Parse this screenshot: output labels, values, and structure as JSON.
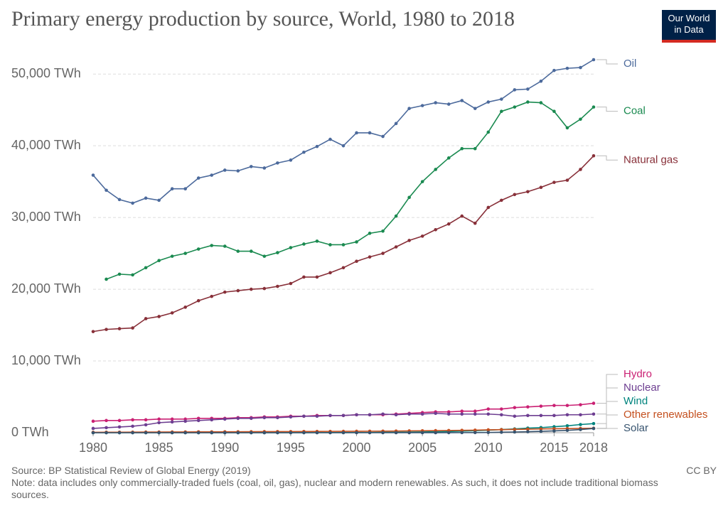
{
  "chart_data": {
    "type": "line",
    "title": "Primary energy production by source, World, 1980 to 2018",
    "logo": [
      "Our World",
      "in Data"
    ],
    "source": "Source: BP Statistical Review of Global Energy (2019)",
    "note": "Note: data includes only commercially-traded fuels (coal, oil, gas), nuclear and modern renewables. As such, it does not include traditional biomass sources.",
    "license": "CC BY",
    "x": [
      1980,
      1981,
      1982,
      1983,
      1984,
      1985,
      1986,
      1987,
      1988,
      1989,
      1990,
      1991,
      1992,
      1993,
      1994,
      1995,
      1996,
      1997,
      1998,
      1999,
      2000,
      2001,
      2002,
      2003,
      2004,
      2005,
      2006,
      2007,
      2008,
      2009,
      2010,
      2011,
      2012,
      2013,
      2014,
      2015,
      2016,
      2017,
      2018
    ],
    "xlim": [
      1980,
      2018
    ],
    "xticks": [
      1980,
      1985,
      1990,
      1995,
      2000,
      2005,
      2010,
      2015,
      2018
    ],
    "ylim": [
      0,
      52000
    ],
    "yticks": [
      {
        "value": 0,
        "label": "0 TWh"
      },
      {
        "value": 10000,
        "label": "10,000 TWh"
      },
      {
        "value": 20000,
        "label": "20,000 TWh"
      },
      {
        "value": 30000,
        "label": "30,000 TWh"
      },
      {
        "value": 40000,
        "label": "40,000 TWh"
      },
      {
        "value": 50000,
        "label": "50,000 TWh"
      }
    ],
    "grid": true,
    "series": [
      {
        "name": "Oil",
        "color": "#4c6a9c",
        "values": [
          35900,
          33800,
          32500,
          32000,
          32700,
          32400,
          34000,
          34000,
          35500,
          35900,
          36600,
          36500,
          37100,
          36900,
          37600,
          38000,
          39100,
          39900,
          40900,
          40000,
          41800,
          41800,
          41300,
          43100,
          45200,
          45600,
          46000,
          45800,
          46300,
          45200,
          46100,
          46500,
          47800,
          47900,
          49000,
          50500,
          50800,
          50900,
          52000
        ]
      },
      {
        "name": "Coal",
        "color": "#1a8a50",
        "values": [
          null,
          21400,
          22100,
          22000,
          23000,
          24000,
          24600,
          25000,
          25600,
          26100,
          26000,
          25300,
          25300,
          24600,
          25100,
          25800,
          26300,
          26700,
          26200,
          26200,
          26600,
          27800,
          28100,
          30200,
          32800,
          35000,
          36700,
          38300,
          39600,
          39600,
          41900,
          44800,
          45400,
          46100,
          46000,
          44800,
          42500,
          43700,
          45400
        ]
      },
      {
        "name": "Natural gas",
        "color": "#883039",
        "values": [
          14100,
          14400,
          14500,
          14600,
          15900,
          16200,
          16700,
          17500,
          18400,
          19000,
          19600,
          19800,
          20000,
          20100,
          20400,
          20800,
          21700,
          21700,
          22300,
          23000,
          23900,
          24500,
          25000,
          25900,
          26800,
          27400,
          28300,
          29100,
          30200,
          29200,
          31400,
          32400,
          33200,
          33600,
          34200,
          34900,
          35200,
          36700,
          38600
        ]
      },
      {
        "name": "Hydro",
        "color": "#ca2073",
        "values": [
          1600,
          1700,
          1700,
          1800,
          1800,
          1900,
          1900,
          1900,
          2000,
          2000,
          2000,
          2100,
          2100,
          2200,
          2200,
          2300,
          2300,
          2400,
          2400,
          2400,
          2500,
          2500,
          2500,
          2600,
          2700,
          2800,
          2900,
          2900,
          3000,
          3000,
          3300,
          3300,
          3500,
          3600,
          3700,
          3800,
          3800,
          3900,
          4100
        ]
      },
      {
        "name": "Nuclear",
        "color": "#6d3e91",
        "values": [
          600,
          700,
          800,
          900,
          1100,
          1400,
          1500,
          1600,
          1700,
          1800,
          1900,
          2000,
          2000,
          2100,
          2100,
          2200,
          2300,
          2300,
          2400,
          2400,
          2500,
          2500,
          2600,
          2500,
          2600,
          2600,
          2700,
          2600,
          2600,
          2600,
          2600,
          2500,
          2300,
          2400,
          2400,
          2400,
          2500,
          2500,
          2600
        ]
      },
      {
        "name": "Wind",
        "color": "#00847e",
        "values": [
          0,
          0,
          0,
          0,
          0,
          0,
          0,
          0,
          0,
          0,
          4,
          4,
          5,
          6,
          7,
          8,
          10,
          12,
          16,
          21,
          31,
          38,
          52,
          63,
          85,
          104,
          133,
          170,
          220,
          277,
          346,
          437,
          523,
          645,
          712,
          831,
          962,
          1140,
          1270
        ]
      },
      {
        "name": "Other renewables",
        "color": "#c4501f",
        "values": [
          60,
          70,
          75,
          80,
          90,
          100,
          105,
          110,
          120,
          125,
          130,
          135,
          140,
          150,
          155,
          160,
          170,
          175,
          185,
          190,
          200,
          210,
          220,
          230,
          250,
          270,
          290,
          310,
          330,
          360,
          400,
          430,
          460,
          490,
          520,
          550,
          580,
          600,
          625
        ]
      },
      {
        "name": "Solar",
        "color": "#38546f",
        "values": [
          0,
          0,
          0,
          0,
          0,
          0,
          0,
          0,
          0,
          0,
          0,
          0,
          0,
          0,
          0,
          0,
          0,
          0,
          0,
          0,
          1,
          1,
          1,
          1,
          2,
          4,
          6,
          8,
          12,
          20,
          34,
          65,
          100,
          140,
          190,
          250,
          330,
          440,
          585
        ]
      }
    ]
  }
}
